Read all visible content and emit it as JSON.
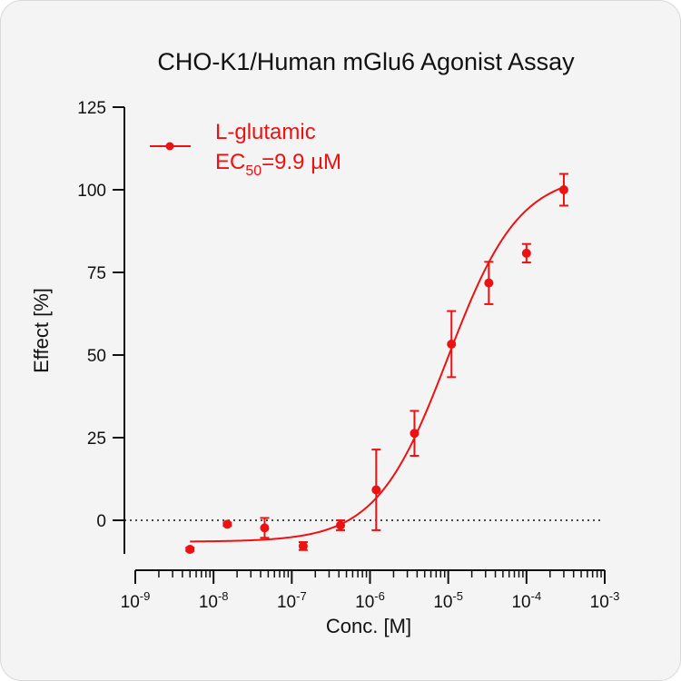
{
  "chart_data": {
    "type": "scatter",
    "title": "CHO-K1/Human mGlu6 Agonist Assay",
    "xlabel": "Conc. [M]",
    "ylabel": "Effect  [%]",
    "x_scale": "log",
    "xlim": [
      1e-09,
      0.001
    ],
    "ylim": [
      -10,
      125
    ],
    "x_tick_labels": [
      {
        "base": "10",
        "exp": "-9"
      },
      {
        "base": "10",
        "exp": "-8"
      },
      {
        "base": "10",
        "exp": "-7"
      },
      {
        "base": "10",
        "exp": "-6"
      },
      {
        "base": "10",
        "exp": "-5"
      },
      {
        "base": "10",
        "exp": "-4"
      },
      {
        "base": "10",
        "exp": "-3"
      }
    ],
    "y_tick_labels": [
      "0",
      "25",
      "50",
      "75",
      "100",
      "125"
    ],
    "y_ticks": [
      0,
      25,
      50,
      75,
      100,
      125
    ],
    "reference_line": {
      "y": 0,
      "style": "dotted"
    },
    "series": [
      {
        "name": "L-glutamic",
        "color": "#ee1111",
        "x": [
          5e-09,
          1.5e-08,
          4.5e-08,
          1.4e-07,
          4.2e-07,
          1.2e-06,
          3.7e-06,
          1.1e-05,
          3.3e-05,
          0.0001,
          0.0003
        ],
        "y": [
          -8.8,
          -1.2,
          -2.3,
          -7.8,
          -1.5,
          9.2,
          26.3,
          53.3,
          71.8,
          80.8,
          100.0
        ],
        "error": [
          0.5,
          0.5,
          3.0,
          1.2,
          1.5,
          12.2,
          6.8,
          10.0,
          6.4,
          2.8,
          4.8
        ],
        "fit": {
          "bottom": -6.5,
          "top": 105,
          "ec50": 9.9e-06,
          "hill": 0.95
        }
      }
    ],
    "legend": {
      "position": "top-left",
      "entries": [
        {
          "label": "L-glutamic",
          "ec50_prefix": "EC",
          "ec50_subscript": "50",
          "ec50_suffix": "=9.9 µM"
        }
      ]
    }
  }
}
